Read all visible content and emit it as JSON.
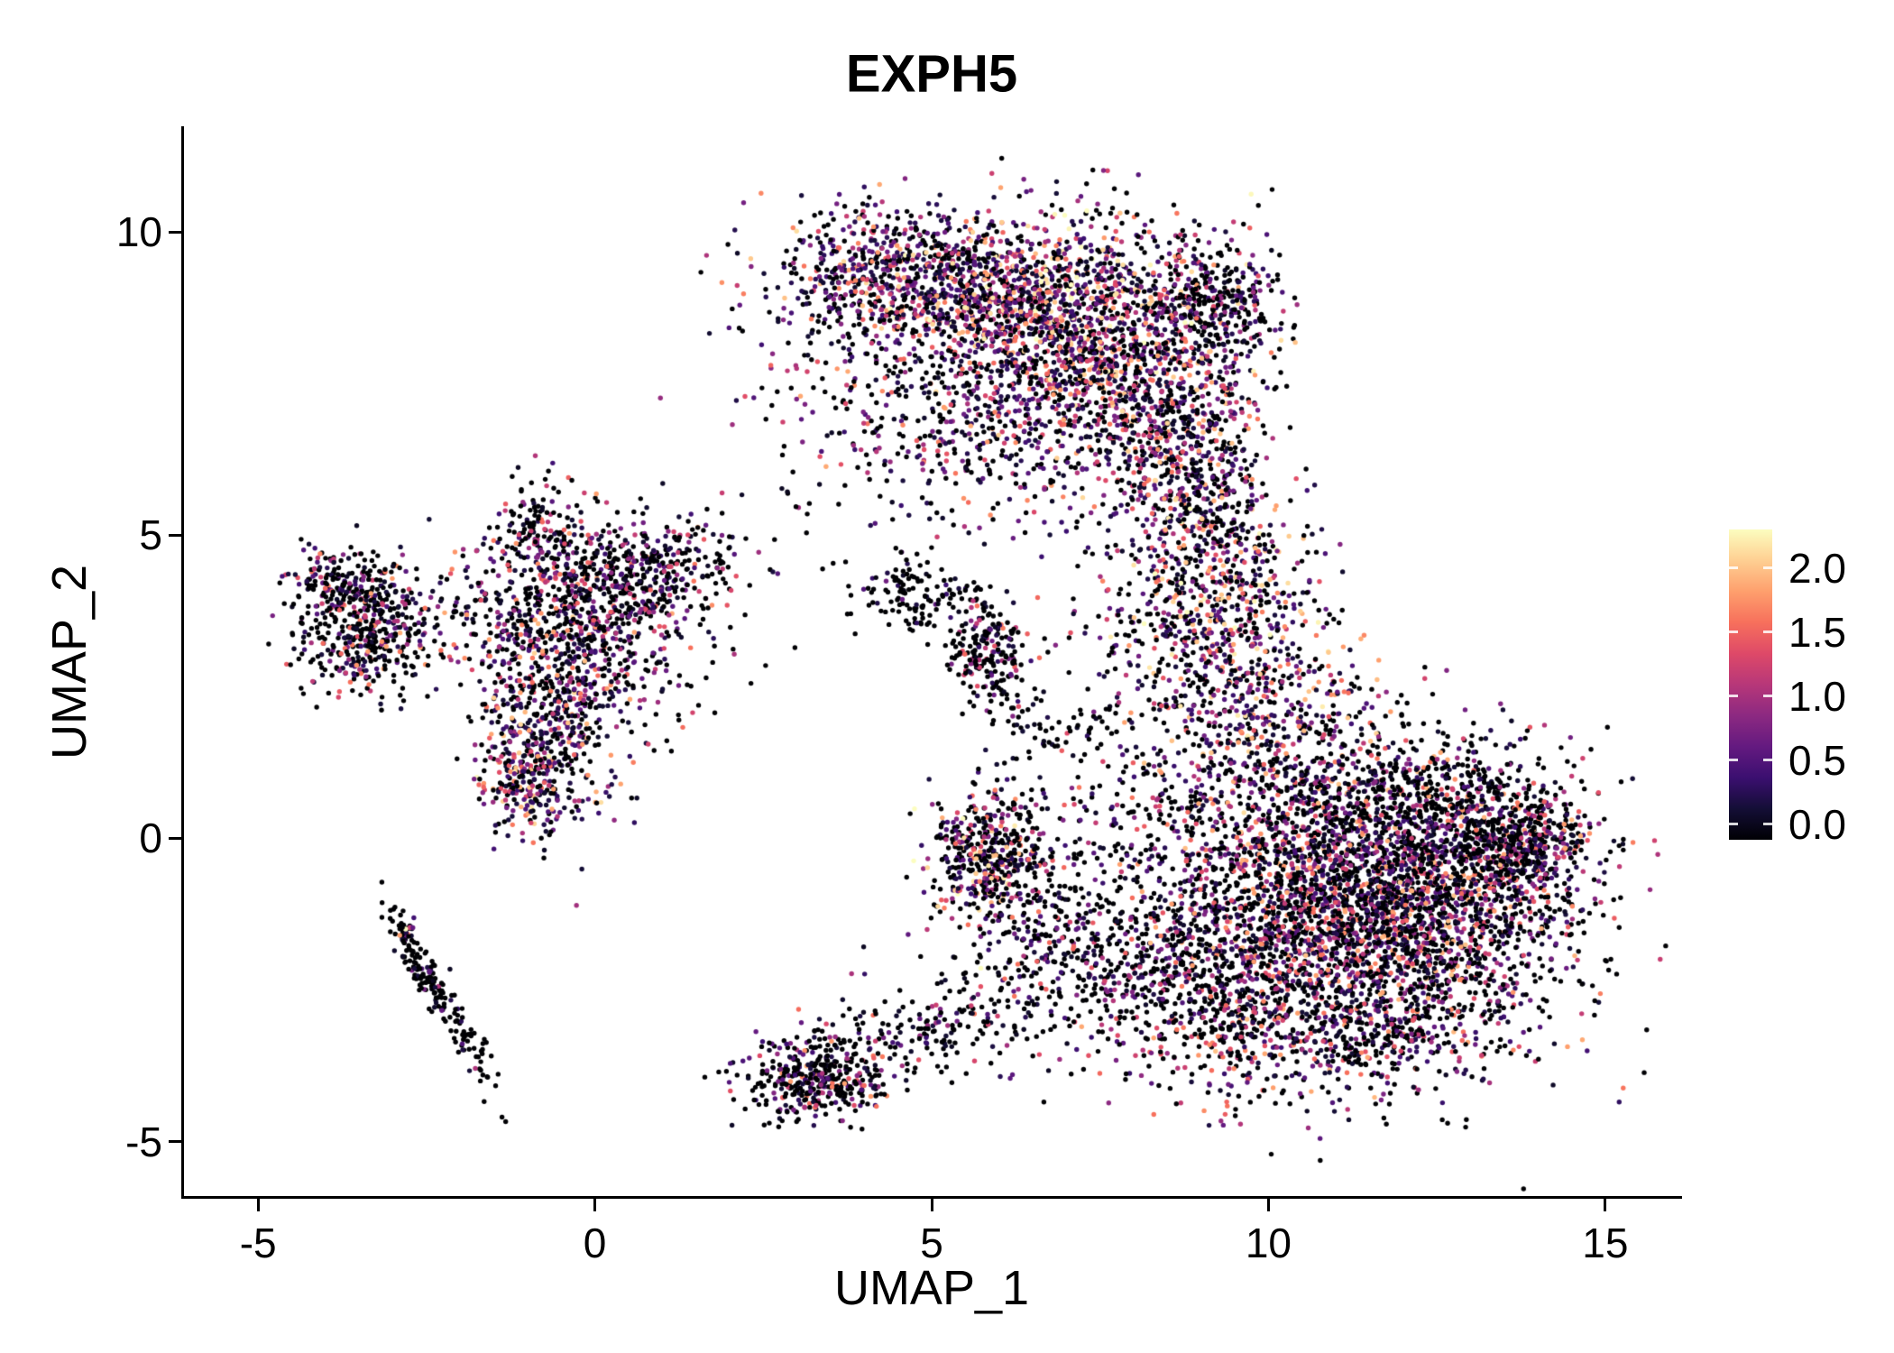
{
  "chart_data": {
    "type": "scatter",
    "title": "EXPH5",
    "xlabel": "UMAP_1",
    "ylabel": "UMAP_2",
    "xlim": [
      -6.1,
      16.1
    ],
    "ylim": [
      -5.9,
      11.7
    ],
    "x_ticks": [
      -5,
      0,
      5,
      10,
      15
    ],
    "y_ticks": [
      -5,
      0,
      5,
      10
    ],
    "grid": false,
    "background": "#ffffff",
    "axis_color": "#000000",
    "text_color": "#000000",
    "point_radius_px": 2.7,
    "seed": 42,
    "colorbar": {
      "position": "right",
      "ticks": [
        2.0,
        1.5,
        1.0,
        0.5,
        0.0
      ],
      "tick_labels": [
        "2.0",
        "1.5",
        "1.0",
        "0.5",
        "0.0"
      ],
      "max_value": 2.3,
      "bar_domain": [
        -0.12,
        2.3
      ],
      "palette": "magma",
      "stops": [
        [
          0.0,
          "#000004"
        ],
        [
          0.1,
          "#140e36"
        ],
        [
          0.2,
          "#3b0f70"
        ],
        [
          0.3,
          "#641a80"
        ],
        [
          0.4,
          "#8c2981"
        ],
        [
          0.5,
          "#b73779"
        ],
        [
          0.6,
          "#de4968"
        ],
        [
          0.7,
          "#f7705c"
        ],
        [
          0.8,
          "#fe9f6d"
        ],
        [
          0.9,
          "#fecf92"
        ],
        [
          1.0,
          "#fcfdbf"
        ]
      ]
    },
    "cluster_fields": [
      "n",
      "center_x",
      "center_y",
      "sigma_x",
      "sigma_y",
      "rotation_deg",
      "zero_expression_fraction",
      "expression_scale"
    ],
    "clusters": [
      [
        800,
        4.9,
        9.2,
        1.1,
        0.55,
        -10,
        0.35,
        0.9
      ],
      [
        1400,
        7.0,
        8.6,
        1.15,
        0.85,
        0,
        0.3,
        1.0
      ],
      [
        700,
        8.4,
        7.1,
        0.75,
        1.0,
        0,
        0.35,
        0.9
      ],
      [
        450,
        6.3,
        6.9,
        1.3,
        0.8,
        0,
        0.4,
        0.8
      ],
      [
        260,
        9.3,
        8.8,
        0.45,
        0.55,
        0,
        0.6,
        0.6
      ],
      [
        150,
        3.6,
        8.6,
        0.8,
        0.9,
        0,
        0.45,
        0.8
      ],
      [
        120,
        4.3,
        6.7,
        1.0,
        0.9,
        0,
        0.6,
        0.6
      ],
      [
        280,
        9.0,
        5.3,
        0.55,
        0.75,
        0,
        0.4,
        0.9
      ],
      [
        650,
        9.4,
        3.6,
        0.75,
        1.1,
        0,
        0.35,
        1.0
      ],
      [
        160,
        8.1,
        3.3,
        0.9,
        1.2,
        0,
        0.5,
        0.8
      ],
      [
        2300,
        10.9,
        -1.1,
        1.5,
        1.25,
        0,
        0.45,
        0.85
      ],
      [
        1400,
        12.4,
        -0.9,
        1.15,
        1.15,
        0,
        0.45,
        0.85
      ],
      [
        420,
        13.8,
        -0.1,
        0.45,
        0.45,
        25,
        0.5,
        0.8
      ],
      [
        450,
        10.2,
        1.4,
        0.95,
        0.9,
        0,
        0.4,
        0.9
      ],
      [
        300,
        12.6,
        0.6,
        0.9,
        0.6,
        0,
        0.7,
        0.6
      ],
      [
        500,
        9.2,
        -2.4,
        0.85,
        0.9,
        0,
        0.5,
        0.8
      ],
      [
        350,
        11.2,
        -3.3,
        1.3,
        0.45,
        0,
        0.5,
        0.8
      ],
      [
        480,
        -3.3,
        3.5,
        0.6,
        0.55,
        -20,
        0.55,
        0.8
      ],
      [
        120,
        -3.9,
        4.2,
        0.35,
        0.3,
        0,
        0.55,
        0.7
      ],
      [
        750,
        -0.3,
        3.9,
        0.95,
        0.7,
        0,
        0.5,
        0.8
      ],
      [
        520,
        -0.6,
        1.9,
        0.55,
        0.85,
        0,
        0.4,
        0.9
      ],
      [
        230,
        0.9,
        4.5,
        0.75,
        0.35,
        5,
        0.55,
        0.7
      ],
      [
        110,
        -0.8,
        5.2,
        0.35,
        0.45,
        0,
        0.5,
        0.8
      ],
      [
        160,
        -1.1,
        1.0,
        0.3,
        0.4,
        0,
        0.35,
        1.0
      ],
      [
        90,
        0.6,
        2.6,
        0.6,
        0.6,
        0,
        0.55,
        0.7
      ],
      [
        130,
        4.8,
        4.0,
        0.4,
        0.3,
        -15,
        0.85,
        0.4
      ],
      [
        220,
        5.8,
        3.1,
        0.28,
        0.5,
        10,
        0.6,
        0.7
      ],
      [
        60,
        6.6,
        1.8,
        0.5,
        0.5,
        0,
        0.7,
        0.6
      ],
      [
        380,
        5.8,
        -0.2,
        0.4,
        0.55,
        0,
        0.45,
        1.05
      ],
      [
        160,
        6.4,
        -0.9,
        0.8,
        0.7,
        0,
        0.6,
        0.7
      ],
      [
        150,
        7.3,
        -2.0,
        1.0,
        0.45,
        -15,
        0.65,
        0.7
      ],
      [
        190,
        -2.3,
        -2.6,
        0.8,
        0.12,
        -62,
        0.8,
        0.5
      ],
      [
        25,
        -2.85,
        -1.55,
        0.08,
        0.1,
        0,
        0.3,
        1.0
      ],
      [
        380,
        3.3,
        -4.0,
        0.55,
        0.35,
        10,
        0.55,
        0.8
      ],
      [
        260,
        5.1,
        -3.1,
        1.3,
        0.4,
        12,
        0.6,
        0.7
      ],
      [
        140,
        7.2,
        -1.6,
        0.9,
        0.9,
        0,
        0.6,
        0.7
      ],
      [
        90,
        7.6,
        0.6,
        0.7,
        0.9,
        0,
        0.55,
        0.7
      ]
    ]
  }
}
